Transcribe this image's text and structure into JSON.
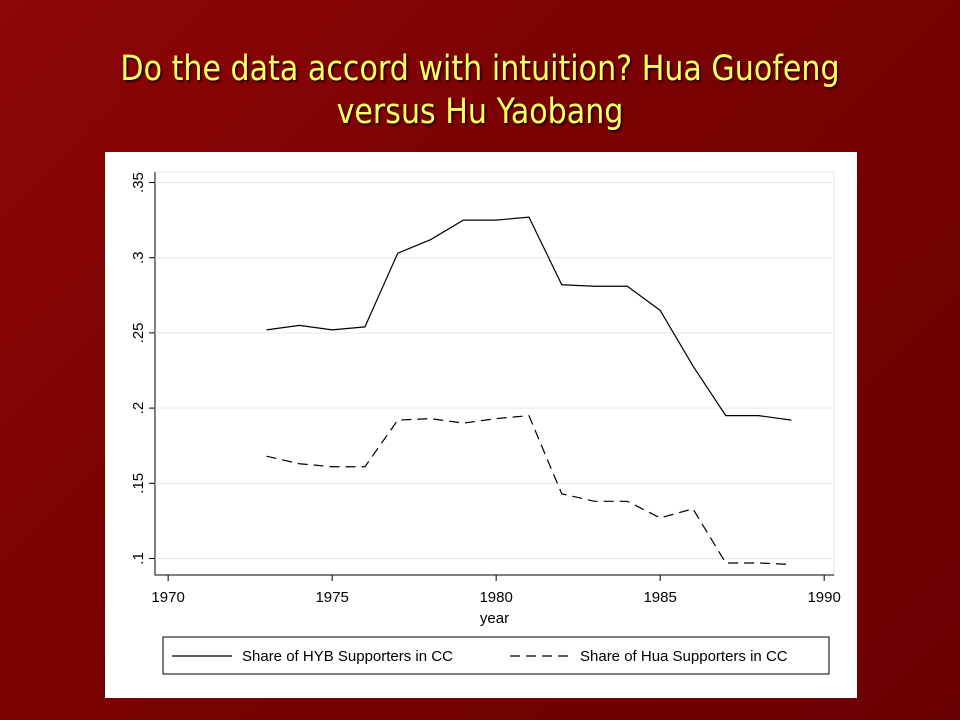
{
  "slide_title": "Do the data accord with intuition? Hua Guofeng versus Hu Yaobang",
  "chart_data": {
    "type": "line",
    "x_label": "year",
    "x": [
      1973,
      1974,
      1975,
      1976,
      1977,
      1978,
      1979,
      1980,
      1981,
      1982,
      1983,
      1984,
      1985,
      1986,
      1987,
      1988,
      1989
    ],
    "series": [
      {
        "name": "Share of HYB Supporters in CC",
        "color": "#000000",
        "dash": "solid",
        "values": [
          0.252,
          0.255,
          0.252,
          0.254,
          0.303,
          0.312,
          0.325,
          0.325,
          0.327,
          0.282,
          0.281,
          0.281,
          0.265,
          0.228,
          0.195,
          0.195,
          0.192
        ]
      },
      {
        "name": "Share of Hua Supporters in CC",
        "color": "#000000",
        "dash": "dashed",
        "values": [
          0.168,
          0.163,
          0.161,
          0.161,
          0.192,
          0.193,
          0.19,
          0.193,
          0.195,
          0.143,
          0.138,
          0.138,
          0.127,
          0.133,
          0.097,
          0.097,
          0.096
        ]
      }
    ],
    "xlim": [
      1969.6,
      1990.3
    ],
    "xticks": [
      1970,
      1975,
      1980,
      1985,
      1990
    ],
    "ylim": [
      0.089,
      0.357
    ],
    "yticks": [
      {
        "value": 0.1,
        "label": ".1"
      },
      {
        "value": 0.15,
        "label": ".15"
      },
      {
        "value": 0.2,
        "label": ".2"
      },
      {
        "value": 0.25,
        "label": ".25"
      },
      {
        "value": 0.3,
        "label": ".3"
      },
      {
        "value": 0.35,
        "label": ".35"
      }
    ],
    "grid": true,
    "legend": "bottom"
  }
}
